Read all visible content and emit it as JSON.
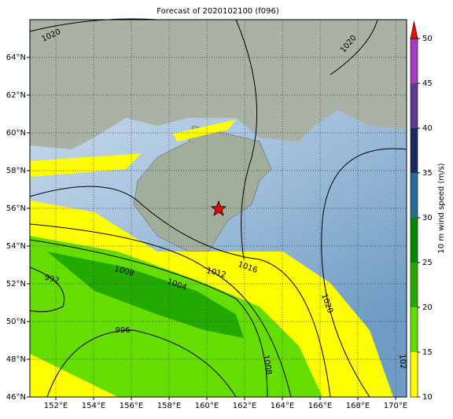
{
  "map": {
    "title": "Forecast of 2020102100 (f096)",
    "lon_ticks": [
      {
        "value": 152,
        "label": "152°E"
      },
      {
        "value": 154,
        "label": "154°E"
      },
      {
        "value": 156,
        "label": "156°E"
      },
      {
        "value": 158,
        "label": "158°E"
      },
      {
        "value": 160,
        "label": "160°E"
      },
      {
        "value": 162,
        "label": "162°E"
      },
      {
        "value": 164,
        "label": "164°E"
      },
      {
        "value": 166,
        "label": "166°E"
      },
      {
        "value": 168,
        "label": "168°E"
      },
      {
        "value": 170,
        "label": "170°E"
      }
    ],
    "lat_ticks": [
      {
        "value": 46,
        "label": "46°N"
      },
      {
        "value": 48,
        "label": "48°N"
      },
      {
        "value": 50,
        "label": "50°N"
      },
      {
        "value": 52,
        "label": "52°N"
      },
      {
        "value": 54,
        "label": "54°N"
      },
      {
        "value": 56,
        "label": "56°N"
      },
      {
        "value": 58,
        "label": "58°N"
      },
      {
        "value": 60,
        "label": "60°N"
      },
      {
        "value": 62,
        "label": "62°N"
      },
      {
        "value": 64,
        "label": "64°N"
      }
    ],
    "contour_labels": [
      1020,
      1020,
      1016,
      1012,
      1008,
      1004,
      992,
      996,
      1020,
      1008,
      102
    ],
    "colorbar": {
      "label": "10 m wind speed (m/s)",
      "lim": [
        10,
        50
      ],
      "ticks": [
        10,
        15,
        20,
        25,
        30,
        35,
        40,
        45,
        50
      ],
      "colors": [
        "#ffff00",
        "#66dd00",
        "#22aa00",
        "#008800",
        "#2a6a96",
        "#1a2a5a",
        "#5a3d8c",
        "#a43cc0"
      ],
      "extend_color": "#ee1100"
    }
  }
}
